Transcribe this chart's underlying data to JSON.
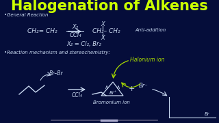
{
  "background_color": "#050d3a",
  "title": "Halogenation of Alkenes",
  "title_color": "#ccff00",
  "title_fontsize": 15,
  "handwriting_color": "#c8d8f0",
  "green_color": "#aadd00",
  "content": {
    "bullet1": "General Reaction",
    "bullet2": "Reaction mechanism and stereochemistry:",
    "halonium_label": "Halonium ion",
    "bromonium_label": "Bromonium ion",
    "ccl4_label": "CCl₄",
    "anti_label": "Anti-addition"
  }
}
